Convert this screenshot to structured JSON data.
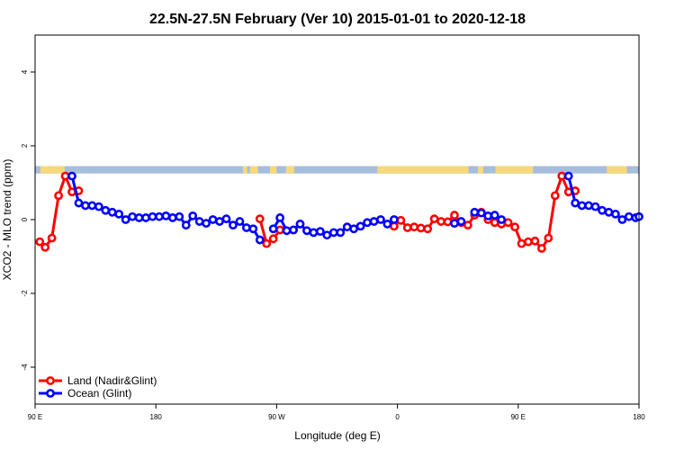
{
  "chart_data": {
    "type": "line",
    "title": "22.5N-27.5N February (Ver 10)   2015-01-01 to 2020-12-18",
    "xlabel": "Longitude (deg E)",
    "ylabel": "XCO2 - MLO trend (ppm)",
    "xlim": [
      90,
      540
    ],
    "ylim": [
      -5,
      5
    ],
    "x_ticks": [
      {
        "value": 90,
        "label": "90 E"
      },
      {
        "value": 180,
        "label": "180"
      },
      {
        "value": 270,
        "label": "90 W"
      },
      {
        "value": 360,
        "label": "0"
      },
      {
        "value": 450,
        "label": "90 E"
      },
      {
        "value": 540,
        "label": "180"
      }
    ],
    "y_ticks": [
      -4,
      -2,
      0,
      2,
      4
    ],
    "grid": false,
    "legend_position": "bottom-left",
    "land_ocean_strip": {
      "y_range": [
        1.25,
        1.45
      ],
      "ocean_color": "#a6bddb",
      "land_color": "#f7d97c",
      "land_segments": [
        [
          94,
          112
        ],
        [
          245,
          248
        ],
        [
          250,
          256
        ],
        [
          265,
          270
        ],
        [
          277,
          283
        ],
        [
          345,
          413
        ],
        [
          420,
          424
        ],
        [
          433,
          461
        ],
        [
          516,
          531
        ]
      ]
    },
    "series": [
      {
        "name": "Land (Nadir&Glint)",
        "color": "#ff0000",
        "points": [
          [
            93.5,
            -0.6
          ],
          [
            97.5,
            -0.75
          ],
          [
            102.5,
            -0.5
          ],
          [
            107.5,
            0.65
          ],
          [
            112.5,
            1.18
          ],
          [
            117.5,
            0.75
          ],
          [
            122.5,
            0.78
          ],
          [
            257.5,
            0.02
          ],
          [
            262.5,
            -0.65
          ],
          [
            267.5,
            -0.52
          ],
          [
            272.5,
            -0.28
          ],
          [
            282.5,
            -0.28
          ],
          [
            287.5,
            -0.12
          ],
          [
            357.5,
            -0.18
          ],
          [
            362.5,
            -0.02
          ],
          [
            367.5,
            -0.22
          ],
          [
            372.5,
            -0.2
          ],
          [
            377.5,
            -0.23
          ],
          [
            382.5,
            -0.25
          ],
          [
            387.5,
            0.02
          ],
          [
            392.5,
            -0.05
          ],
          [
            397.5,
            -0.06
          ],
          [
            402.5,
            0.12
          ],
          [
            407.5,
            -0.08
          ],
          [
            412.5,
            -0.15
          ],
          [
            417.5,
            0.12
          ],
          [
            422.5,
            0.2
          ],
          [
            427.5,
            0.0
          ],
          [
            432.5,
            -0.08
          ],
          [
            437.5,
            -0.12
          ],
          [
            442.5,
            -0.08
          ],
          [
            447.5,
            -0.2
          ],
          [
            452.5,
            -0.65
          ],
          [
            457.5,
            -0.6
          ],
          [
            462.5,
            -0.58
          ],
          [
            467.5,
            -0.78
          ],
          [
            472.5,
            -0.5
          ],
          [
            477.5,
            0.65
          ],
          [
            482.5,
            1.18
          ],
          [
            487.5,
            0.75
          ],
          [
            492.5,
            0.78
          ]
        ]
      },
      {
        "name": "Ocean (Glint)",
        "color": "#0000ff",
        "points": [
          [
            117.5,
            1.18
          ],
          [
            122.5,
            0.45
          ],
          [
            127.5,
            0.38
          ],
          [
            132.5,
            0.38
          ],
          [
            137.5,
            0.35
          ],
          [
            142.5,
            0.25
          ],
          [
            147.5,
            0.2
          ],
          [
            152.5,
            0.15
          ],
          [
            157.5,
            0.0
          ],
          [
            162.5,
            0.08
          ],
          [
            167.5,
            0.05
          ],
          [
            172.5,
            0.05
          ],
          [
            177.5,
            0.08
          ],
          [
            182.5,
            0.08
          ],
          [
            187.5,
            0.1
          ],
          [
            192.5,
            0.05
          ],
          [
            197.5,
            0.08
          ],
          [
            202.5,
            -0.15
          ],
          [
            207.5,
            0.1
          ],
          [
            212.5,
            -0.05
          ],
          [
            217.5,
            -0.1
          ],
          [
            222.5,
            0.0
          ],
          [
            227.5,
            -0.05
          ],
          [
            232.5,
            0.02
          ],
          [
            237.5,
            -0.15
          ],
          [
            242.5,
            -0.05
          ],
          [
            247.5,
            -0.22
          ],
          [
            252.5,
            -0.25
          ],
          [
            257.5,
            -0.55
          ],
          [
            267.5,
            -0.25
          ],
          [
            272.5,
            0.05
          ],
          [
            277.5,
            -0.3
          ],
          [
            282.5,
            -0.28
          ],
          [
            287.5,
            -0.12
          ],
          [
            292.5,
            -0.3
          ],
          [
            297.5,
            -0.35
          ],
          [
            302.5,
            -0.32
          ],
          [
            307.5,
            -0.42
          ],
          [
            312.5,
            -0.35
          ],
          [
            317.5,
            -0.35
          ],
          [
            322.5,
            -0.2
          ],
          [
            327.5,
            -0.25
          ],
          [
            332.5,
            -0.18
          ],
          [
            337.5,
            -0.08
          ],
          [
            342.5,
            -0.05
          ],
          [
            347.5,
            0.0
          ],
          [
            352.5,
            -0.12
          ],
          [
            357.5,
            0.0
          ],
          [
            402.5,
            -0.1
          ],
          [
            407.5,
            -0.05
          ],
          [
            417.5,
            0.2
          ],
          [
            422.5,
            0.18
          ],
          [
            427.5,
            0.1
          ],
          [
            432.5,
            0.12
          ],
          [
            437.5,
            0.0
          ],
          [
            487.5,
            1.18
          ],
          [
            492.5,
            0.45
          ],
          [
            497.5,
            0.38
          ],
          [
            502.5,
            0.38
          ],
          [
            507.5,
            0.35
          ],
          [
            512.5,
            0.25
          ],
          [
            517.5,
            0.2
          ],
          [
            522.5,
            0.15
          ],
          [
            527.5,
            0.0
          ],
          [
            532.5,
            0.08
          ],
          [
            537.5,
            0.05
          ],
          [
            540,
            0.08
          ]
        ]
      }
    ]
  }
}
